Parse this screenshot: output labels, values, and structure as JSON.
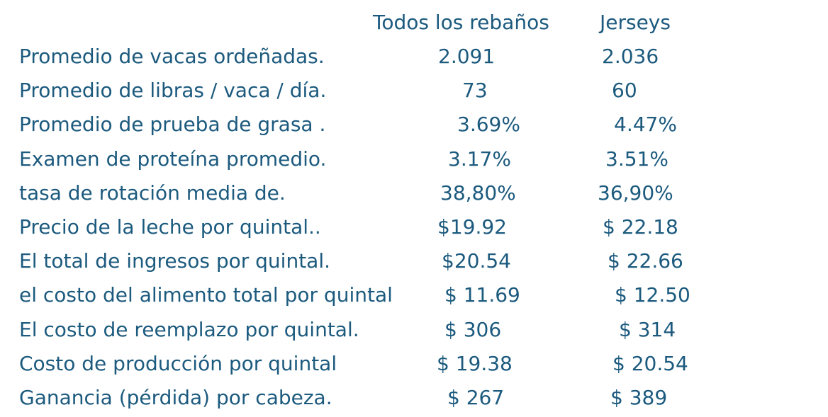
{
  "table": {
    "headers": {
      "all_herds": "Todos los rebaños",
      "jerseys": "Jerseys"
    },
    "rows": [
      {
        "label": "Promedio de vacas ordeñadas.",
        "all_herds": "2.091",
        "jerseys": "2.036"
      },
      {
        "label": "Promedio de libras / vaca / día.",
        "all_herds": "73",
        "jerseys": "60"
      },
      {
        "label": "Promedio de prueba de grasa .",
        "all_herds": "3.69%",
        "jerseys": "4.47%"
      },
      {
        "label": "Examen de proteína promedio.",
        "all_herds": "3.17%",
        "jerseys": "3.51%"
      },
      {
        "label": "tasa de rotación media de.",
        "all_herds": "38,80%",
        "jerseys": "36,90%"
      },
      {
        "label": "Precio de la leche por quintal..",
        "all_herds": "$19.92",
        "jerseys": "$ 22.18"
      },
      {
        "label": "El total de ingresos por quintal.",
        "all_herds": "$20.54",
        "jerseys": "$ 22.66"
      },
      {
        "label": "el costo del alimento total por quintal",
        "all_herds": "$ 11.69",
        "jerseys": "$ 12.50"
      },
      {
        "label": "El costo de reemplazo por quintal.",
        "all_herds": "$ 306",
        "jerseys": "$ 314"
      },
      {
        "label": "Costo de producción por quintal",
        "all_herds": "$ 19.38",
        "jerseys": "$ 20.54"
      },
      {
        "label": "Ganancia (pérdida) por cabeza.",
        "all_herds": "$ 267",
        "jerseys": "$ 389"
      }
    ]
  }
}
